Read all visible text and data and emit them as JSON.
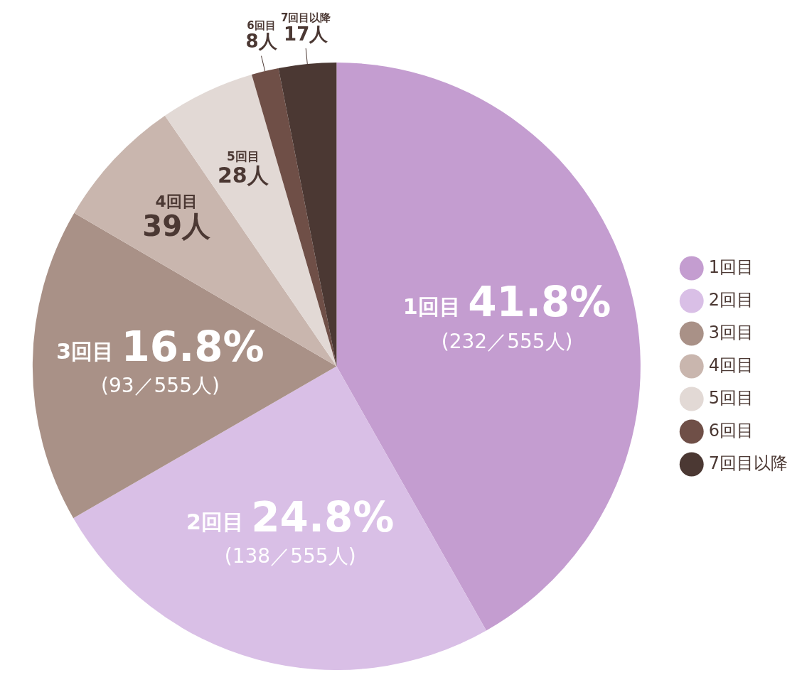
{
  "chart_data": {
    "type": "pie",
    "categories": [
      "1回目",
      "2回目",
      "3回目",
      "4回目",
      "5回目",
      "6回目",
      "7回目以降"
    ],
    "values": [
      232,
      138,
      93,
      39,
      28,
      8,
      17
    ],
    "colors": [
      "#c49dd0",
      "#d9bfe6",
      "#a99187",
      "#c9b6ae",
      "#e2d9d5",
      "#6f4f47",
      "#4b3833"
    ],
    "value_labels": [
      "41.8%\n(232／555人)",
      "24.8%\n(138／555人)",
      "16.8%\n(93／555人)",
      "39人",
      "28人",
      "8人",
      "17人"
    ],
    "legend": "right"
  }
}
